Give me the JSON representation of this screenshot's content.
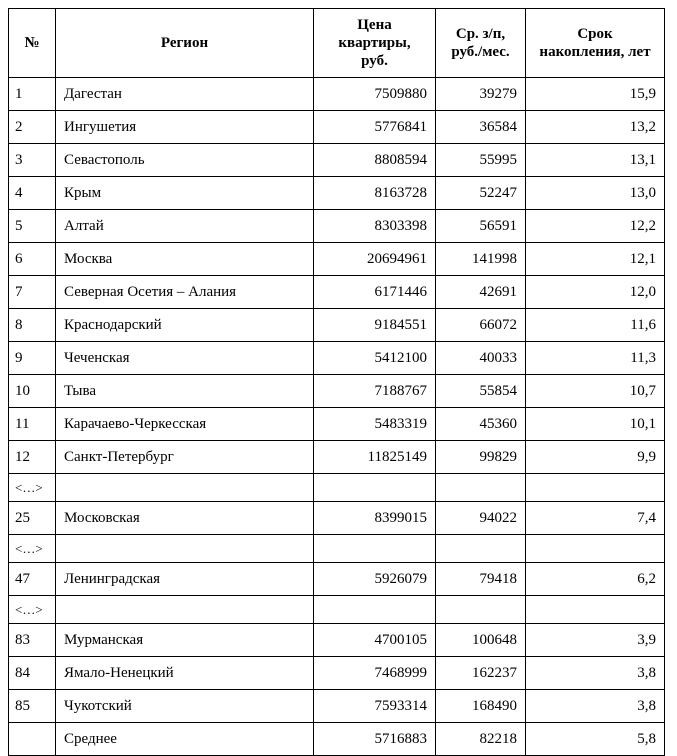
{
  "table": {
    "columns": [
      {
        "id": "num",
        "label": "№"
      },
      {
        "id": "region",
        "label": "Регион"
      },
      {
        "id": "price",
        "label": "Цена\nквартиры,\nруб."
      },
      {
        "id": "salary",
        "label": "Ср. з/п,\nруб./мес."
      },
      {
        "id": "years",
        "label": "Срок\nнакопления, лет"
      }
    ],
    "ellipsis_marker": "<…>",
    "border_color": "#000000",
    "rows": [
      {
        "type": "data",
        "cells": [
          "1",
          "Дагестан",
          "7509880",
          "39279",
          "15,9"
        ]
      },
      {
        "type": "data",
        "cells": [
          "2",
          "Ингушетия",
          "5776841",
          "36584",
          "13,2"
        ]
      },
      {
        "type": "data",
        "cells": [
          "3",
          "Севастополь",
          "8808594",
          "55995",
          "13,1"
        ]
      },
      {
        "type": "data",
        "cells": [
          "4",
          "Крым",
          "8163728",
          "52247",
          "13,0"
        ]
      },
      {
        "type": "data",
        "cells": [
          "5",
          "Алтай",
          "8303398",
          "56591",
          "12,2"
        ]
      },
      {
        "type": "data",
        "cells": [
          "6",
          "Москва",
          "20694961",
          "141998",
          "12,1"
        ]
      },
      {
        "type": "data",
        "cells": [
          "7",
          "Северная Осетия – Алания",
          "6171446",
          "42691",
          "12,0"
        ]
      },
      {
        "type": "data",
        "cells": [
          "8",
          "Краснодарский",
          "9184551",
          "66072",
          "11,6"
        ]
      },
      {
        "type": "data",
        "cells": [
          "9",
          "Чеченская",
          "5412100",
          "40033",
          "11,3"
        ]
      },
      {
        "type": "data",
        "cells": [
          "10",
          "Тыва",
          "7188767",
          "55854",
          "10,7"
        ]
      },
      {
        "type": "data",
        "cells": [
          "11",
          "Карачаево-Черкесская",
          "5483319",
          "45360",
          "10,1"
        ]
      },
      {
        "type": "data",
        "cells": [
          "12",
          "Санкт-Петербург",
          "11825149",
          "99829",
          "9,9"
        ]
      },
      {
        "type": "ellipsis",
        "cells": [
          "<…>",
          "",
          "",
          "",
          ""
        ]
      },
      {
        "type": "data",
        "cells": [
          "25",
          "Московская",
          "8399015",
          "94022",
          "7,4"
        ]
      },
      {
        "type": "ellipsis",
        "cells": [
          "<…>",
          "",
          "",
          "",
          ""
        ]
      },
      {
        "type": "data",
        "cells": [
          "47",
          "Ленинградская",
          "5926079",
          "79418",
          "6,2"
        ]
      },
      {
        "type": "ellipsis",
        "cells": [
          "<…>",
          "",
          "",
          "",
          ""
        ]
      },
      {
        "type": "data",
        "cells": [
          "83",
          "Мурманская",
          "4700105",
          "100648",
          "3,9"
        ]
      },
      {
        "type": "data",
        "cells": [
          "84",
          "Ямало-Ненецкий",
          "7468999",
          "162237",
          "3,8"
        ]
      },
      {
        "type": "data",
        "cells": [
          "85",
          "Чукотский",
          "7593314",
          "168490",
          "3,8"
        ]
      },
      {
        "type": "data",
        "cells": [
          "",
          "Среднее",
          "5716883",
          "82218",
          "5,8"
        ]
      }
    ]
  }
}
